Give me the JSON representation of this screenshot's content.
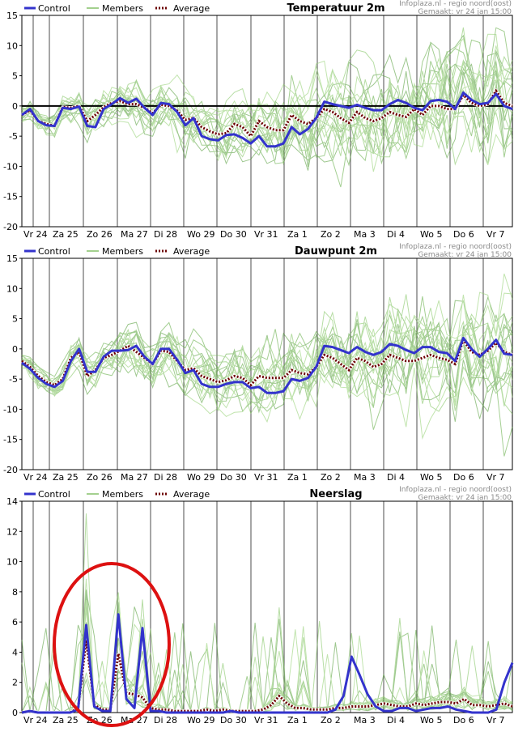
{
  "legend": {
    "control": "Control",
    "members": "Members",
    "average": "Average"
  },
  "source": "Infoplaza.nl - regio noord(oost)",
  "made": "Gemaakt: vr 24 jan 15:00",
  "colors": {
    "control": "#3333cc",
    "members": "#66b044",
    "average": "#6b0000",
    "highlight": "#dd1111",
    "zero_line": "#000000"
  },
  "categories": [
    "Vr 24",
    "Za 25",
    "Zo 26",
    "Ma 27",
    "Di 28",
    "Wo 29",
    "Do 30",
    "Vr 31",
    "Za 1",
    "Zo 2",
    "Ma 3",
    "Di 4",
    "Wo 5",
    "Do 6",
    "Vr 7"
  ],
  "chart_data": [
    {
      "type": "line",
      "title": "Temperatuur 2m",
      "ylim": [
        -20,
        15
      ],
      "yticks": [
        -20,
        -15,
        -10,
        -5,
        0,
        5,
        10,
        15
      ],
      "zero_line": true,
      "series": [
        {
          "name": "Control",
          "values": [
            -1.5,
            -0.5,
            -2.5,
            -3.2,
            -3.3,
            -0.3,
            -0.5,
            -0.1,
            -3.3,
            -3.5,
            -0.5,
            0.3,
            1.3,
            0.5,
            1.2,
            -0.3,
            -1.5,
            0.5,
            0.3,
            -1.0,
            -3.2,
            -2.0,
            -5.0,
            -5.5,
            -5.7,
            -4.8,
            -4.7,
            -5.3,
            -6.2,
            -5.0,
            -6.7,
            -6.7,
            -6.2,
            -3.5,
            -4.7,
            -3.8,
            -2.0,
            0.7,
            0.3,
            0.0,
            -0.3,
            0.2,
            -0.3,
            -0.7,
            -0.7,
            0.3,
            1.0,
            0.5,
            -0.3,
            -0.7,
            0.8,
            1.0,
            0.7,
            -0.5,
            2.2,
            1.0,
            0.3,
            0.5,
            2.0,
            0.0,
            -0.5
          ]
        },
        {
          "name": "Average",
          "values": [
            -1.5,
            -0.7,
            -2.5,
            -3.0,
            -3.3,
            -0.2,
            -0.3,
            0.0,
            -2.5,
            -1.5,
            -0.2,
            0.5,
            0.8,
            0.3,
            0.3,
            -0.3,
            -1.2,
            0.2,
            0.0,
            -0.8,
            -2.3,
            -2.0,
            -3.5,
            -4.2,
            -4.7,
            -4.5,
            -3.0,
            -3.5,
            -5.0,
            -2.5,
            -3.5,
            -4.0,
            -4.0,
            -1.5,
            -2.5,
            -3.0,
            -2.0,
            -0.5,
            -1.0,
            -2.0,
            -2.8,
            -1.0,
            -2.0,
            -2.5,
            -2.0,
            -1.0,
            -1.5,
            -1.8,
            -0.5,
            -1.5,
            0.0,
            0.0,
            -0.5,
            -0.5,
            1.8,
            0.5,
            0.0,
            0.3,
            2.5,
            0.5,
            0.0
          ]
        }
      ]
    },
    {
      "type": "line",
      "title": "Dauwpunt 2m",
      "ylim": [
        -20,
        15
      ],
      "yticks": [
        -20,
        -15,
        -10,
        -5,
        0,
        5,
        10,
        15
      ],
      "zero_line": false,
      "series": [
        {
          "name": "Control",
          "values": [
            -2.3,
            -3.3,
            -4.8,
            -5.8,
            -6.3,
            -5.3,
            -2.0,
            0.0,
            -3.8,
            -3.8,
            -1.3,
            -0.3,
            -0.3,
            -0.2,
            0.5,
            -1.3,
            -2.5,
            0.0,
            0.0,
            -1.8,
            -4.0,
            -3.5,
            -5.8,
            -6.3,
            -6.3,
            -5.8,
            -5.5,
            -5.5,
            -6.5,
            -6.3,
            -7.3,
            -7.3,
            -7.0,
            -5.0,
            -5.3,
            -4.8,
            -3.0,
            0.5,
            0.3,
            -0.2,
            -0.7,
            0.3,
            -0.5,
            -1.0,
            -0.5,
            0.8,
            0.5,
            -0.2,
            -0.7,
            0.3,
            0.3,
            -0.5,
            -0.7,
            -2.0,
            1.8,
            0.0,
            -1.3,
            0.0,
            1.5,
            -0.8,
            -1.0
          ]
        },
        {
          "name": "Average",
          "values": [
            -2.0,
            -3.0,
            -4.5,
            -5.5,
            -6.0,
            -5.0,
            -1.5,
            -0.5,
            -4.5,
            -3.5,
            -1.5,
            -1.0,
            -0.3,
            0.5,
            -0.5,
            -1.5,
            -2.5,
            -0.3,
            -0.5,
            -2.0,
            -3.5,
            -3.2,
            -4.5,
            -5.0,
            -5.5,
            -5.2,
            -4.5,
            -4.8,
            -6.0,
            -4.5,
            -4.8,
            -4.8,
            -4.8,
            -3.5,
            -4.0,
            -4.2,
            -3.0,
            -1.0,
            -1.5,
            -2.5,
            -3.5,
            -1.5,
            -2.0,
            -3.0,
            -2.5,
            -1.0,
            -1.5,
            -2.0,
            -2.0,
            -1.5,
            -1.0,
            -1.5,
            -1.8,
            -2.5,
            1.5,
            -0.5,
            -1.0,
            -0.3,
            1.0,
            -0.5,
            -1.0
          ]
        }
      ]
    },
    {
      "type": "line",
      "title": "Neerslag",
      "ylim": [
        0,
        14
      ],
      "yticks": [
        0,
        2,
        4,
        6,
        8,
        10,
        12,
        14
      ],
      "zero_line": false,
      "series": [
        {
          "name": "Control",
          "values": [
            0.0,
            0.1,
            0.0,
            0.0,
            0.0,
            0.0,
            0.0,
            0.2,
            5.8,
            0.4,
            0.1,
            0.1,
            6.5,
            0.9,
            0.3,
            5.6,
            0.1,
            0.1,
            0.0,
            0.0,
            0.0,
            0.0,
            0.0,
            0.0,
            0.0,
            0.0,
            0.1,
            0.0,
            0.0,
            0.0,
            0.0,
            0.0,
            0.0,
            0.0,
            0.0,
            0.0,
            0.0,
            0.0,
            0.0,
            0.2,
            1.1,
            3.7,
            2.5,
            1.2,
            0.4,
            0.1,
            0.1,
            0.3,
            0.3,
            0.1,
            0.2,
            0.3,
            0.3,
            0.4,
            0.2,
            0.1,
            0.0,
            0.0,
            0.0,
            0.2,
            2.0,
            3.3
          ]
        },
        {
          "name": "Average",
          "values": [
            0.0,
            0.1,
            0.0,
            0.0,
            0.0,
            0.0,
            0.0,
            0.3,
            4.8,
            0.5,
            0.2,
            0.2,
            3.9,
            1.3,
            1.2,
            1.0,
            0.3,
            0.2,
            0.2,
            0.1,
            0.1,
            0.1,
            0.1,
            0.2,
            0.1,
            0.2,
            0.1,
            0.1,
            0.1,
            0.1,
            0.2,
            0.5,
            1.1,
            0.6,
            0.3,
            0.3,
            0.2,
            0.2,
            0.2,
            0.3,
            0.3,
            0.4,
            0.4,
            0.4,
            0.5,
            0.6,
            0.5,
            0.4,
            0.4,
            0.6,
            0.5,
            0.6,
            0.7,
            0.7,
            0.6,
            0.9,
            0.5,
            0.5,
            0.4,
            0.5,
            0.6,
            0.4
          ]
        }
      ]
    }
  ]
}
